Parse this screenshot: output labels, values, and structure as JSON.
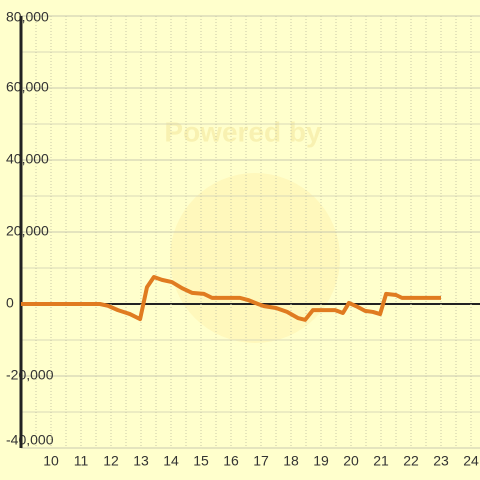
{
  "chart_data": {
    "type": "line",
    "annotation": "Powered by",
    "xlim": [
      9,
      24.3
    ],
    "ylim": [
      -40000,
      80000
    ],
    "xticks": [
      10,
      11,
      12,
      13,
      14,
      15,
      16,
      17,
      18,
      19,
      20,
      21,
      22,
      23,
      24
    ],
    "yticks": [
      {
        "value": -40000,
        "label": "-40,000"
      },
      {
        "value": -20000,
        "label": "-20,000"
      },
      0,
      {
        "value": 20000,
        "label": "20,000"
      },
      {
        "value": 40000,
        "label": "40,000"
      },
      {
        "value": 60000,
        "label": "60,000"
      },
      {
        "value": 80000,
        "label": "80,000"
      }
    ],
    "grid": true,
    "series": [
      {
        "color": "#e07b20",
        "x": [
          9,
          11.63,
          11.9,
          12.23,
          12.63,
          12.97,
          13.2,
          13.43,
          13.7,
          14.03,
          14.37,
          14.7,
          15.1,
          15.37,
          16.3,
          16.57,
          16.9,
          17.1,
          17.5,
          17.87,
          18.23,
          18.47,
          18.73,
          19.47,
          19.73,
          19.93,
          20.17,
          20.47,
          20.73,
          20.97,
          21.17,
          21.5,
          21.7,
          23.0
        ],
        "values": [
          0,
          0,
          -500,
          -1700,
          -2800,
          -4200,
          4700,
          7500,
          6700,
          6100,
          4400,
          3100,
          2800,
          1700,
          1700,
          1100,
          0,
          -600,
          -1100,
          -2200,
          -3900,
          -4400,
          -1700,
          -1700,
          -2500,
          300,
          -600,
          -1900,
          -2200,
          -2800,
          2800,
          2500,
          1700,
          1700
        ]
      }
    ]
  }
}
